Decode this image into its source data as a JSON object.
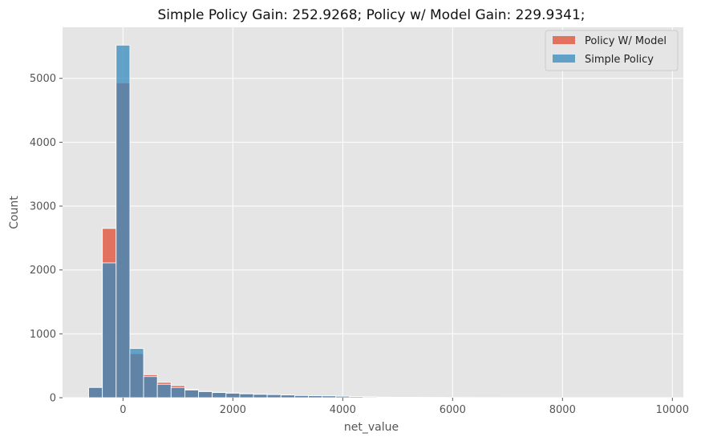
{
  "chart_data": {
    "type": "bar",
    "title": "Simple Policy Gain: 252.9268; Policy w/ Model Gain: 229.9341;",
    "xlabel": "net_value",
    "ylabel": "Count",
    "xlim": [
      -1100,
      10200
    ],
    "ylim": [
      0,
      5800
    ],
    "xticks": [
      0,
      2000,
      4000,
      6000,
      8000,
      10000
    ],
    "yticks": [
      0,
      1000,
      2000,
      3000,
      4000,
      5000
    ],
    "bin_width": 250,
    "bin_edges": [
      -625,
      -375,
      -125,
      125,
      375,
      625,
      875,
      1125,
      1375,
      1625,
      1875,
      2125,
      2375,
      2625,
      2875,
      3125,
      3375,
      3625,
      3875,
      4125,
      4375,
      4625,
      4875,
      5125,
      5375,
      5625,
      5875,
      6125,
      6375,
      6625,
      6875,
      7125
    ],
    "grid": true,
    "legend_position": "top-right",
    "series": [
      {
        "name": "Policy W/ Model",
        "color": "#e24a33",
        "values": [
          160,
          2650,
          4930,
          690,
          360,
          240,
          190,
          130,
          100,
          85,
          75,
          65,
          55,
          50,
          45,
          35,
          30,
          28,
          24,
          18,
          14,
          10,
          8,
          6,
          5,
          4,
          3,
          3,
          2,
          2,
          1
        ]
      },
      {
        "name": "Simple Policy",
        "color": "#348abd",
        "values": [
          160,
          2110,
          5520,
          770,
          330,
          210,
          160,
          120,
          95,
          80,
          70,
          60,
          52,
          48,
          42,
          33,
          30,
          28,
          22,
          16,
          12,
          8,
          6,
          5,
          4,
          3,
          2,
          2,
          1,
          1,
          1
        ]
      }
    ]
  }
}
